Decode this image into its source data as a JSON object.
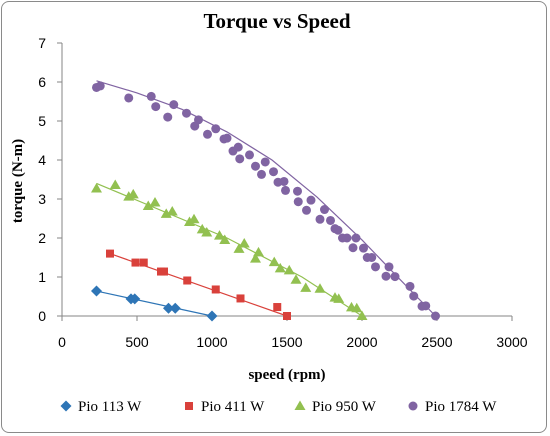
{
  "chart_data": {
    "type": "scatter",
    "title": "Torque vs Speed",
    "xlabel": "speed (rpm)",
    "ylabel": "torque (N-m)",
    "xlim": [
      0,
      3000
    ],
    "ylim": [
      0,
      7
    ],
    "xticks": [
      0,
      500,
      1000,
      1500,
      2000,
      2500,
      3000
    ],
    "yticks": [
      0,
      1,
      2,
      3,
      4,
      5,
      6,
      7
    ],
    "grid": false,
    "legend": "bottom",
    "series": [
      {
        "name": "Pio 113 W",
        "color": "#2e75b6",
        "marker": "diamond",
        "points": [
          [
            230,
            0.64
          ],
          [
            460,
            0.44
          ],
          [
            485,
            0.44
          ],
          [
            710,
            0.2
          ],
          [
            755,
            0.2
          ],
          [
            1000,
            0.0
          ]
        ],
        "trend": [
          [
            230,
            0.64
          ],
          [
            1000,
            0.0
          ]
        ]
      },
      {
        "name": "Pio 411 W",
        "color": "#d9413b",
        "marker": "square",
        "points": [
          [
            320,
            1.6
          ],
          [
            490,
            1.37
          ],
          [
            545,
            1.37
          ],
          [
            660,
            1.14
          ],
          [
            680,
            1.14
          ],
          [
            835,
            0.91
          ],
          [
            1025,
            0.68
          ],
          [
            1190,
            0.45
          ],
          [
            1435,
            0.23
          ],
          [
            1500,
            0.0
          ]
        ],
        "trend": [
          [
            320,
            1.6
          ],
          [
            1500,
            0.0
          ]
        ]
      },
      {
        "name": "Pio 950 W",
        "color": "#92c050",
        "marker": "triangle",
        "points": [
          [
            230,
            3.27
          ],
          [
            355,
            3.36
          ],
          [
            445,
            3.06
          ],
          [
            475,
            3.12
          ],
          [
            575,
            2.82
          ],
          [
            620,
            2.91
          ],
          [
            695,
            2.62
          ],
          [
            735,
            2.68
          ],
          [
            850,
            2.41
          ],
          [
            880,
            2.48
          ],
          [
            935,
            2.22
          ],
          [
            965,
            2.14
          ],
          [
            1050,
            2.06
          ],
          [
            1085,
            1.95
          ],
          [
            1180,
            1.72
          ],
          [
            1215,
            1.86
          ],
          [
            1290,
            1.47
          ],
          [
            1310,
            1.63
          ],
          [
            1415,
            1.38
          ],
          [
            1455,
            1.22
          ],
          [
            1515,
            1.17
          ],
          [
            1560,
            0.93
          ],
          [
            1625,
            0.72
          ],
          [
            1720,
            0.7
          ],
          [
            1820,
            0.47
          ],
          [
            1845,
            0.44
          ],
          [
            1930,
            0.22
          ],
          [
            1965,
            0.2
          ],
          [
            2000,
            0.0
          ]
        ],
        "trend": [
          [
            230,
            3.4
          ],
          [
            1100,
            2.0
          ],
          [
            1600,
            1.0
          ],
          [
            2000,
            0.0
          ]
        ]
      },
      {
        "name": "Pio 1784 W",
        "color": "#8064a2",
        "marker": "circle",
        "points": [
          [
            230,
            5.86
          ],
          [
            255,
            5.9
          ],
          [
            445,
            5.59
          ],
          [
            595,
            5.63
          ],
          [
            625,
            5.37
          ],
          [
            705,
            5.1
          ],
          [
            745,
            5.42
          ],
          [
            830,
            5.2
          ],
          [
            885,
            4.87
          ],
          [
            910,
            5.03
          ],
          [
            970,
            4.66
          ],
          [
            1025,
            4.8
          ],
          [
            1080,
            4.54
          ],
          [
            1100,
            4.56
          ],
          [
            1140,
            4.23
          ],
          [
            1175,
            4.33
          ],
          [
            1185,
            4.03
          ],
          [
            1250,
            4.13
          ],
          [
            1290,
            3.84
          ],
          [
            1330,
            3.63
          ],
          [
            1355,
            3.95
          ],
          [
            1410,
            3.7
          ],
          [
            1440,
            3.43
          ],
          [
            1480,
            3.45
          ],
          [
            1490,
            3.22
          ],
          [
            1570,
            3.2
          ],
          [
            1575,
            2.93
          ],
          [
            1630,
            2.71
          ],
          [
            1660,
            2.97
          ],
          [
            1720,
            2.48
          ],
          [
            1750,
            2.73
          ],
          [
            1790,
            2.45
          ],
          [
            1820,
            2.24
          ],
          [
            1840,
            2.2
          ],
          [
            1870,
            2.0
          ],
          [
            1900,
            2.0
          ],
          [
            1940,
            1.75
          ],
          [
            1960,
            2.0
          ],
          [
            2010,
            1.74
          ],
          [
            2035,
            1.5
          ],
          [
            2065,
            1.5
          ],
          [
            2090,
            1.26
          ],
          [
            2160,
            1.02
          ],
          [
            2180,
            1.26
          ],
          [
            2220,
            1.01
          ],
          [
            2320,
            0.76
          ],
          [
            2345,
            0.51
          ],
          [
            2400,
            0.25
          ],
          [
            2425,
            0.26
          ],
          [
            2490,
            0.0
          ]
        ],
        "trend": [
          [
            230,
            6.03
          ],
          [
            500,
            5.72
          ],
          [
            800,
            5.3
          ],
          [
            1100,
            4.72
          ],
          [
            1400,
            4.0
          ],
          [
            1700,
            3.05
          ],
          [
            2000,
            1.95
          ],
          [
            2250,
            0.95
          ],
          [
            2490,
            0.0
          ]
        ]
      }
    ]
  }
}
